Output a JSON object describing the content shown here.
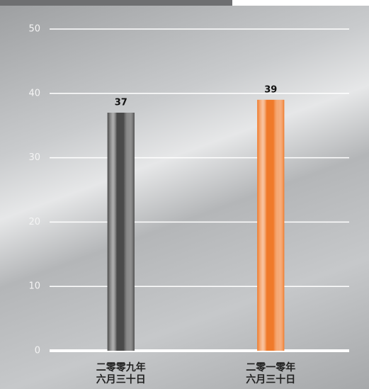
{
  "chart_data": {
    "type": "bar",
    "categories": [
      "二零零九年\n六月三十日",
      "二零一零年\n六月三十日"
    ],
    "values": [
      37,
      39
    ],
    "colors": [
      "#4a4a4a",
      "#f07a2a"
    ],
    "ylim": [
      0,
      50
    ],
    "yticks": [
      0,
      10,
      20,
      30,
      40,
      50
    ],
    "grid": true
  }
}
